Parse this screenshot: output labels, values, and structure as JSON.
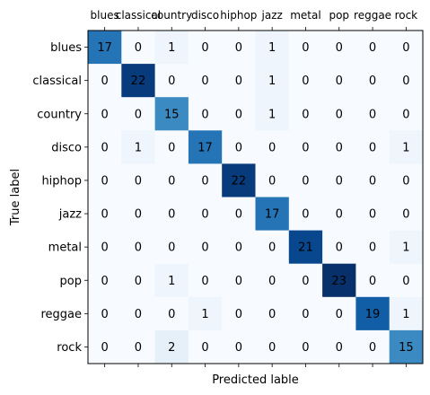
{
  "chart_data": {
    "type": "heatmap",
    "title": "",
    "xlabel": "Predicted lable",
    "ylabel": "True label",
    "x_categories": [
      "blues",
      "classical",
      "country",
      "disco",
      "hiphop",
      "jazz",
      "metal",
      "pop",
      "reggae",
      "rock"
    ],
    "y_categories": [
      "blues",
      "classical",
      "country",
      "disco",
      "hiphop",
      "jazz",
      "metal",
      "pop",
      "reggae",
      "rock"
    ],
    "values": [
      [
        17,
        0,
        1,
        0,
        0,
        1,
        0,
        0,
        0,
        0
      ],
      [
        0,
        22,
        0,
        0,
        0,
        1,
        0,
        0,
        0,
        0
      ],
      [
        0,
        0,
        15,
        0,
        0,
        1,
        0,
        0,
        0,
        0
      ],
      [
        0,
        1,
        0,
        17,
        0,
        0,
        0,
        0,
        0,
        1
      ],
      [
        0,
        0,
        0,
        0,
        22,
        0,
        0,
        0,
        0,
        0
      ],
      [
        0,
        0,
        0,
        0,
        0,
        17,
        0,
        0,
        0,
        0
      ],
      [
        0,
        0,
        0,
        0,
        0,
        0,
        21,
        0,
        0,
        1
      ],
      [
        0,
        0,
        1,
        0,
        0,
        0,
        0,
        23,
        0,
        0
      ],
      [
        0,
        0,
        0,
        1,
        0,
        0,
        0,
        0,
        19,
        1
      ],
      [
        0,
        0,
        2,
        0,
        0,
        0,
        0,
        0,
        0,
        15
      ]
    ],
    "colormap": "Blues",
    "x_tick_position": "top",
    "grid": false,
    "legend": "none"
  }
}
